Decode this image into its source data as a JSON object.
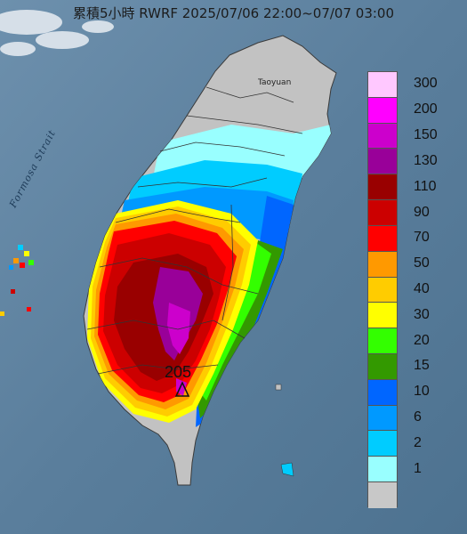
{
  "title": "累積5小時 RWRF 2025/07/06 22:00~07/07 03:00",
  "max_value_label": "205",
  "labels": {
    "strait": "Formosa Strait",
    "city": "Taoyuan"
  },
  "colors": {
    "sea": "#5b7f9e",
    "land": "#b9b9b9"
  },
  "legend": {
    "items": [
      {
        "label": "300",
        "color": "#ffc8ff"
      },
      {
        "label": "200",
        "color": "#ff00ff"
      },
      {
        "label": "150",
        "color": "#cc00cc"
      },
      {
        "label": "130",
        "color": "#990099"
      },
      {
        "label": "110",
        "color": "#990000"
      },
      {
        "label": "90",
        "color": "#cc0000"
      },
      {
        "label": "70",
        "color": "#ff0000"
      },
      {
        "label": "50",
        "color": "#ff9900"
      },
      {
        "label": "40",
        "color": "#ffcc00"
      },
      {
        "label": "30",
        "color": "#ffff00"
      },
      {
        "label": "20",
        "color": "#33ff00"
      },
      {
        "label": "15",
        "color": "#339900"
      },
      {
        "label": "10",
        "color": "#0066ff"
      },
      {
        "label": "6",
        "color": "#0099ff"
      },
      {
        "label": "2",
        "color": "#00ccff"
      },
      {
        "label": "1",
        "color": "#99ffff"
      },
      {
        "label": "",
        "color": "#c8c8c8"
      }
    ]
  }
}
